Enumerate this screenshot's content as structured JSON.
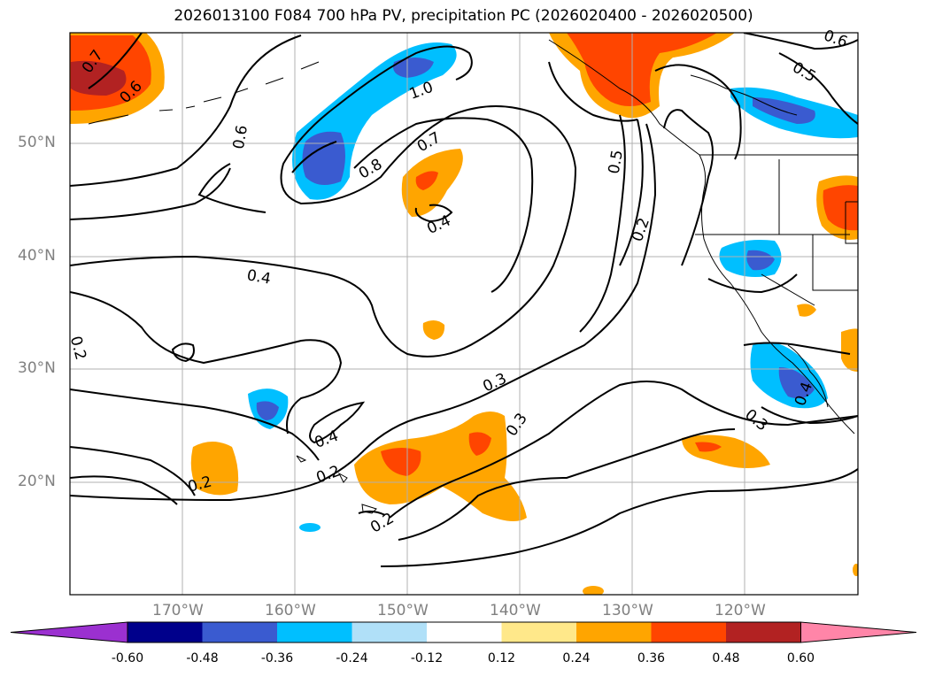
{
  "title": "2026013100 F084 700 hPa PV, precipitation PC (2026020400 - 2026020500)",
  "map_data": {
    "type": "contour-map",
    "field_contour": "700 hPa PV",
    "field_shaded": "precipitation PC",
    "lat_ticks": [
      "50°N",
      "40°N",
      "30°N",
      "20°N"
    ],
    "lon_ticks": [
      "170°W",
      "160°W",
      "150°W",
      "140°W",
      "130°W",
      "120°W"
    ],
    "contour_labels": [
      "0.7",
      "0.6",
      "1.0",
      "0.6",
      "0.7",
      "0.8",
      "0.5",
      "0.5",
      "0.6",
      "0.4",
      "0.2",
      "0.4",
      "0.2",
      "0.3",
      "0.3",
      "0.4",
      "0.2",
      "0.2",
      "0.2",
      "0.3",
      "0.4"
    ],
    "colorbar": {
      "levels": [
        "-0.60",
        "-0.48",
        "-0.36",
        "-0.24",
        "-0.12",
        "0.12",
        "0.24",
        "0.36",
        "0.48",
        "0.60"
      ],
      "colors": [
        "#9b30d0",
        "#00008b",
        "#3a5bd0",
        "#00bfff",
        "#b0e0f8",
        "#ffffff",
        "#ffe88a",
        "#ffa500",
        "#ff4500",
        "#b22222",
        "#ff85a8"
      ]
    }
  }
}
